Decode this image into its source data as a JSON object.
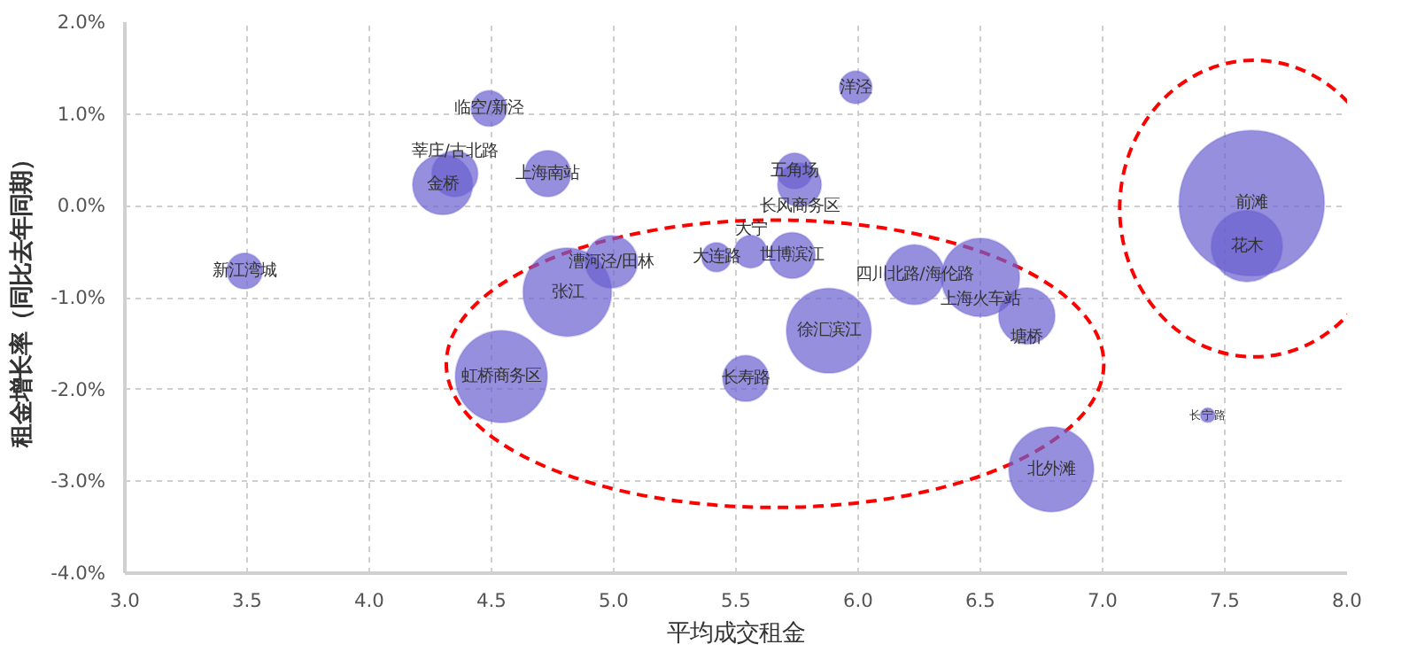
{
  "chart_data": {
    "type": "bubble",
    "xlabel": "平均成交租金",
    "ylabel": "租金增长率（同比去年同期）",
    "xlim": [
      3.0,
      8.0
    ],
    "xticks": [
      {
        "value": 3.0,
        "label": "3.0"
      },
      {
        "value": 3.5,
        "label": "3.5"
      },
      {
        "value": 4.0,
        "label": "4.0"
      },
      {
        "value": 4.5,
        "label": "4.5"
      },
      {
        "value": 5.0,
        "label": "5.0"
      },
      {
        "value": 5.5,
        "label": "5.5"
      },
      {
        "value": 6.0,
        "label": "6.0"
      },
      {
        "value": 6.5,
        "label": "6.5"
      },
      {
        "value": 7.0,
        "label": "7.0"
      },
      {
        "value": 7.5,
        "label": "7.5"
      },
      {
        "value": 8.0,
        "label": "8.0"
      }
    ],
    "ylim": [
      -4.0,
      2.0
    ],
    "yticks": [
      {
        "value": -4,
        "label": "-4.0%"
      },
      {
        "value": -3,
        "label": "-3.0%"
      },
      {
        "value": -2,
        "label": "-2.0%"
      },
      {
        "value": -1,
        "label": "-1.0%"
      },
      {
        "value": 0,
        "label": "0.0%"
      },
      {
        "value": 1,
        "label": "1.0%"
      },
      {
        "value": 2,
        "label": "2.0%"
      }
    ],
    "grid": true,
    "series": [
      {
        "name": "新江湾城",
        "color": "#6a5fd0",
        "x": [
          3.49
        ],
        "values": [
          -0.71
        ],
        "sizes": [
          0.06
        ]
      },
      {
        "name": "临空/新泾",
        "color": "#6a5fd0",
        "x": [
          4.49
        ],
        "values": [
          1.06
        ],
        "sizes": [
          0.06
        ]
      },
      {
        "name": "金桥",
        "color": "#6a5fd0",
        "x": [
          4.3
        ],
        "values": [
          0.23
        ],
        "sizes": [
          0.17
        ]
      },
      {
        "name": "莘庄/古北路",
        "color": "#6a5fd0",
        "x": [
          4.35
        ],
        "values": [
          0.35
        ],
        "sizes": [
          0.1
        ]
      },
      {
        "name": "上海南站",
        "color": "#6a5fd0",
        "x": [
          4.73
        ],
        "values": [
          0.35
        ],
        "sizes": [
          0.1
        ]
      },
      {
        "name": "洋泾",
        "color": "#6a5fd0",
        "x": [
          5.99
        ],
        "values": [
          1.29
        ],
        "sizes": [
          0.05
        ]
      },
      {
        "name": "五角场",
        "color": "#6a5fd0",
        "x": [
          5.74
        ],
        "values": [
          0.38
        ],
        "sizes": [
          0.06
        ]
      },
      {
        "name": "长风商务区",
        "color": "#6a5fd0",
        "x": [
          5.76
        ],
        "values": [
          0.23
        ],
        "sizes": [
          0.09
        ]
      },
      {
        "name": "前滩",
        "color": "#6a5fd0",
        "x": [
          7.61
        ],
        "values": [
          0.03
        ],
        "sizes": [
          1
        ]
      },
      {
        "name": "花木",
        "color": "#6a5fd0",
        "x": [
          7.59
        ],
        "values": [
          -0.44
        ],
        "sizes": [
          0.24
        ]
      },
      {
        "name": "张江",
        "color": "#6a5fd0",
        "x": [
          4.81
        ],
        "values": [
          -0.94
        ],
        "sizes": [
          0.37
        ]
      },
      {
        "name": "漕河泾/田林",
        "color": "#6a5fd0",
        "x": [
          4.99
        ],
        "values": [
          -0.61
        ],
        "sizes": [
          0.13
        ]
      },
      {
        "name": "大连路",
        "color": "#6a5fd0",
        "x": [
          5.42
        ],
        "values": [
          -0.56
        ],
        "sizes": [
          0.04
        ]
      },
      {
        "name": "大宁",
        "color": "#6a5fd0",
        "x": [
          5.56
        ],
        "values": [
          -0.5
        ],
        "sizes": [
          0.05
        ]
      },
      {
        "name": "世博滨江",
        "color": "#6a5fd0",
        "x": [
          5.73
        ],
        "values": [
          -0.54
        ],
        "sizes": [
          0.1
        ]
      },
      {
        "name": "四川北路/海伦路",
        "color": "#6a5fd0",
        "x": [
          6.23
        ],
        "values": [
          -0.75
        ],
        "sizes": [
          0.17
        ]
      },
      {
        "name": "上海火车站",
        "color": "#6a5fd0",
        "x": [
          6.5
        ],
        "values": [
          -0.78
        ],
        "sizes": [
          0.29
        ]
      },
      {
        "name": "塘桥",
        "color": "#6a5fd0",
        "x": [
          6.69
        ],
        "values": [
          -1.2
        ],
        "sizes": [
          0.15
        ]
      },
      {
        "name": "徐汇滨江",
        "color": "#6a5fd0",
        "x": [
          5.88
        ],
        "values": [
          -1.36
        ],
        "sizes": [
          0.34
        ]
      },
      {
        "name": "长寿路",
        "color": "#6a5fd0",
        "x": [
          5.54
        ],
        "values": [
          -1.88
        ],
        "sizes": [
          0.1
        ]
      },
      {
        "name": "虹桥商务区",
        "color": "#6a5fd0",
        "x": [
          4.54
        ],
        "values": [
          -1.86
        ],
        "sizes": [
          0.4
        ]
      },
      {
        "name": "北外滩",
        "color": "#6a5fd0",
        "x": [
          6.79
        ],
        "values": [
          -2.87
        ],
        "sizes": [
          0.34
        ]
      },
      {
        "name": "长宁路",
        "color": "#6a5fd0",
        "x": [
          7.43
        ],
        "values": [
          -2.28
        ],
        "sizes": [
          0.01
        ]
      }
    ]
  }
}
